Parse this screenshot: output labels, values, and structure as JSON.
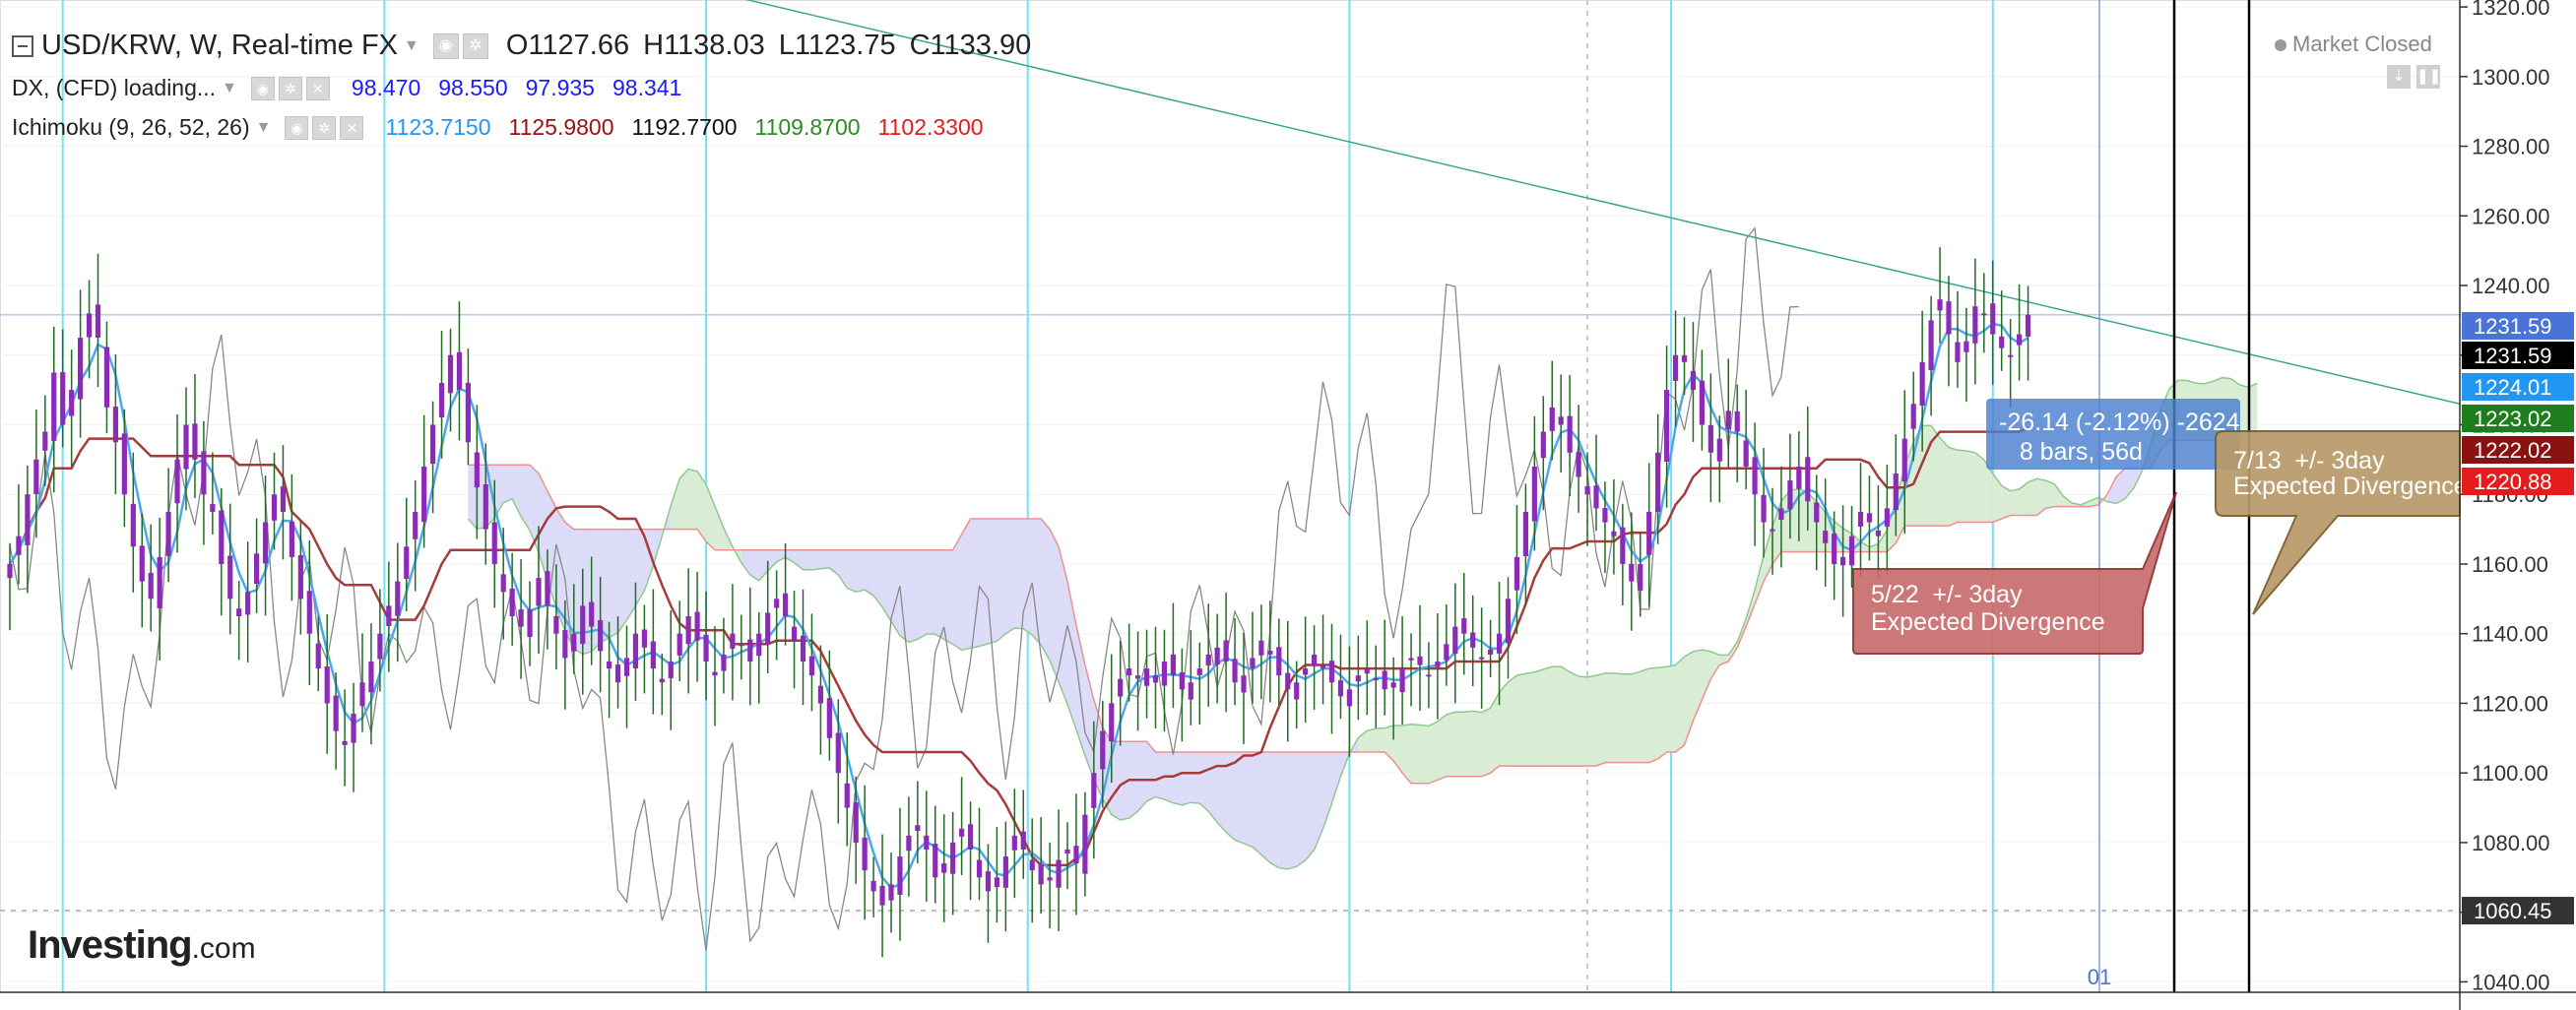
{
  "header": {
    "symbol_title": "USD/KRW, W, Real-time FX",
    "ohlc": [
      {
        "key": "O",
        "value": "1127.66"
      },
      {
        "key": "H",
        "value": "1138.03"
      },
      {
        "key": "L",
        "value": "1123.75"
      },
      {
        "key": "C",
        "value": "1133.90"
      }
    ],
    "market_status": "Market Closed"
  },
  "indicators": {
    "dx": {
      "label": "DX, (CFD) loading...",
      "values": [
        "98.470",
        "98.550",
        "97.935",
        "98.341"
      ],
      "color": "#1a1aff"
    },
    "ichimoku": {
      "label": "Ichimoku (9, 26, 52, 26)",
      "values": [
        {
          "text": "1123.7150",
          "color": "#2196f3"
        },
        {
          "text": "1125.9800",
          "color": "#a01010"
        },
        {
          "text": "1192.7700",
          "color": "#111111"
        },
        {
          "text": "1109.8700",
          "color": "#2e8b22"
        },
        {
          "text": "1102.3300",
          "color": "#e51c1c"
        }
      ]
    }
  },
  "branding": {
    "logo_main": "Investing",
    "logo_suffix": ".com"
  },
  "icons": [
    "collapse-icon",
    "eye-icon",
    "gear-icon",
    "close-icon",
    "dropdown-caret-icon"
  ],
  "colors": {
    "candle_body": "#8b2bb8",
    "candle_wick": "#226b22",
    "tenkan": "#4ba8ee",
    "kijun": "#a63b3b",
    "chikou": "#888888",
    "cloud_bull": "#d9ecd4",
    "cloud_bear": "#dcdcf8",
    "vline": "#74e0f2",
    "trendline": "#3aa68a"
  },
  "chart_data": {
    "type": "candlestick",
    "symbol": "USD/KRW",
    "interval": "W",
    "ylim": [
      1037,
      1322
    ],
    "y_ticks": [
      1040,
      1060,
      1080,
      1100,
      1120,
      1140,
      1160,
      1180,
      1200,
      1220,
      1240,
      1260,
      1280,
      1300,
      1320
    ],
    "price_labels": [
      {
        "value": "1231.59",
        "bg": "#4a73d8",
        "fg": "#ffffff"
      },
      {
        "value": "1231.59",
        "bg": "#000000",
        "fg": "#ffffff"
      },
      {
        "value": "1224.01",
        "bg": "#2196f3",
        "fg": "#ffffff"
      },
      {
        "value": "1223.02",
        "bg": "#1e7e1e",
        "fg": "#ffffff"
      },
      {
        "value": "1222.02",
        "bg": "#8b1010",
        "fg": "#ffffff"
      },
      {
        "value": "1220.88",
        "bg": "#e51c1c",
        "fg": "#ffffff"
      },
      {
        "value": "1060.45",
        "bg": "#333333",
        "fg": "#ffffff"
      }
    ],
    "closes": [
      1160,
      1168,
      1180,
      1190,
      1198,
      1215,
      1200,
      1210,
      1225,
      1232,
      1225,
      1205,
      1195,
      1180,
      1165,
      1155,
      1150,
      1162,
      1175,
      1190,
      1200,
      1190,
      1180,
      1175,
      1160,
      1150,
      1145,
      1152,
      1163,
      1172,
      1180,
      1175,
      1162,
      1150,
      1140,
      1130,
      1120,
      1112,
      1108,
      1117,
      1126,
      1132,
      1140,
      1148,
      1155,
      1165,
      1175,
      1188,
      1200,
      1212,
      1220,
      1210,
      1195,
      1182,
      1170,
      1160,
      1152,
      1145,
      1142,
      1147,
      1156,
      1148,
      1140,
      1133,
      1140,
      1148,
      1142,
      1135,
      1130,
      1126,
      1133,
      1140,
      1136,
      1130,
      1126,
      1132,
      1140,
      1145,
      1138,
      1132,
      1128,
      1134,
      1140,
      1137,
      1132,
      1140,
      1146,
      1150,
      1145,
      1138,
      1132,
      1128,
      1120,
      1110,
      1100,
      1090,
      1080,
      1072,
      1066,
      1062,
      1068,
      1076,
      1082,
      1085,
      1078,
      1070,
      1074,
      1080,
      1084,
      1078,
      1070,
      1066,
      1070,
      1076,
      1082,
      1078,
      1072,
      1068,
      1070,
      1075,
      1078,
      1074,
      1088,
      1100,
      1112,
      1120,
      1127,
      1130,
      1128,
      1125,
      1128,
      1132,
      1128,
      1124,
      1126,
      1130,
      1134,
      1136,
      1132,
      1126,
      1128,
      1133,
      1138,
      1134,
      1128,
      1124,
      1126,
      1130,
      1134,
      1130,
      1126,
      1122,
      1124,
      1128,
      1130,
      1127,
      1124,
      1126,
      1130,
      1133,
      1131,
      1128,
      1132,
      1137,
      1142,
      1140,
      1136,
      1133,
      1134,
      1140,
      1150,
      1162,
      1175,
      1188,
      1198,
      1205,
      1200,
      1192,
      1185,
      1180,
      1176,
      1172,
      1168,
      1160,
      1155,
      1160,
      1175,
      1192,
      1210,
      1220,
      1218,
      1210,
      1200,
      1192,
      1196,
      1204,
      1198,
      1188,
      1180,
      1172,
      1170,
      1176,
      1184,
      1188,
      1178,
      1172,
      1166,
      1160,
      1162,
      1168,
      1175,
      1172,
      1168,
      1176,
      1186,
      1196,
      1206,
      1218,
      1230,
      1236,
      1226,
      1218,
      1224,
      1234,
      1232,
      1226,
      1222,
      1220,
      1226,
      1231.59
    ],
    "tenkan_sen_current": 1123.715,
    "kijun_sen_current": 1125.98,
    "chikou_span_current": 1192.77,
    "senkou_span_a_current": 1109.87,
    "senkou_span_b_current": 1102.33,
    "annotations": [
      {
        "text": "-26.14 (-2.12%) -2624\n   8 bars, 56d",
        "type": "price-range-measure"
      },
      {
        "text": "5/22  +/- 3day\nExpected Divergence",
        "type": "callout"
      },
      {
        "text": "7/13  +/- 3day\nExpected Divergence",
        "type": "callout"
      }
    ],
    "bottom_marker": "01"
  }
}
